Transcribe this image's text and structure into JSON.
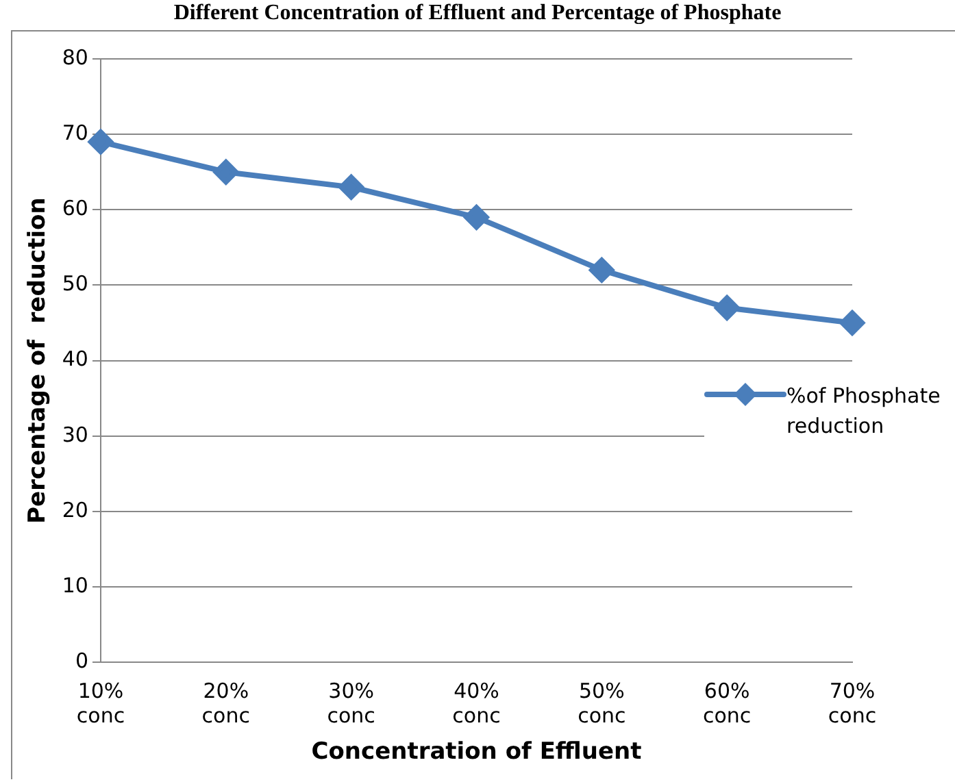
{
  "chart_data": {
    "type": "line",
    "title": "Different Concentration of Effluent and Percentage of Phosphate",
    "xlabel": "Concentration of Effluent",
    "ylabel": "Percentage of  reduction",
    "categories": [
      "10% conc",
      "20% conc",
      "30% conc",
      "40% conc",
      "50% conc",
      "60% conc",
      "70% conc"
    ],
    "series": [
      {
        "name": "%of Phosphate reduction",
        "color": "#4a7ebb",
        "values": [
          69,
          65,
          63,
          59,
          52,
          47,
          45
        ]
      }
    ],
    "ylim": [
      0,
      80
    ],
    "yticks": [
      0,
      10,
      20,
      30,
      40,
      50,
      60,
      70,
      80
    ],
    "grid": "y",
    "legend": "right",
    "marker": "diamond",
    "line_style": "solid"
  }
}
